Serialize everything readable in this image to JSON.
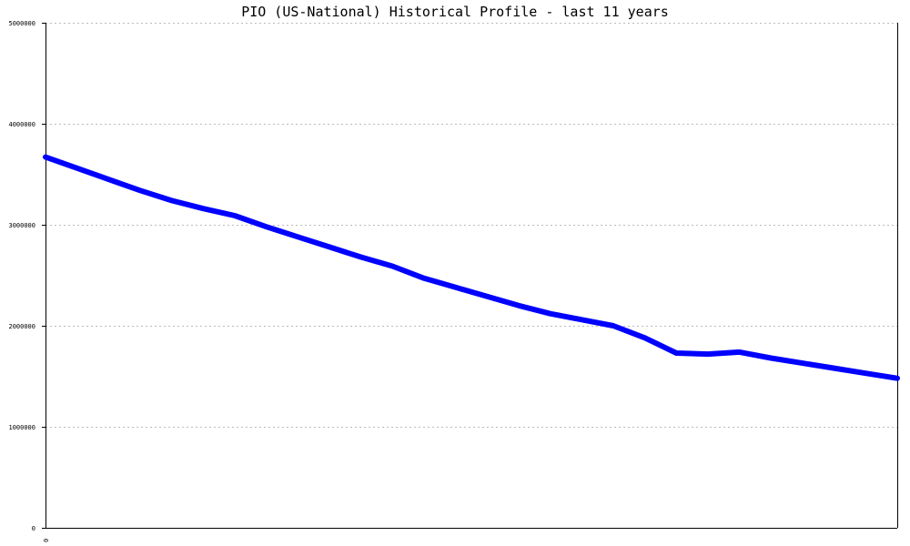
{
  "chart_data": {
    "type": "line",
    "title": "PIO (US-National) Historical Profile - last 11 years",
    "xlabel": "",
    "ylabel": "",
    "ylim": [
      0,
      5000000
    ],
    "yticks": [
      0,
      1000000,
      2000000,
      3000000,
      4000000,
      5000000
    ],
    "ytick_labels": [
      "0",
      "1000000",
      "2000000",
      "3000000",
      "4000000",
      "5000000"
    ],
    "xtick_labels": [
      "0"
    ],
    "grid": true,
    "colors": {
      "line": "#0000ff",
      "grid": "#bbbbbb",
      "axis": "#000000"
    },
    "series": [
      {
        "values": [
          3670000,
          3560000,
          3450000,
          3340000,
          3240000,
          3160000,
          3090000,
          2980000,
          2880000,
          2780000,
          2680000,
          2590000,
          2470000,
          2380000,
          2290000,
          2200000,
          2120000,
          2060000,
          2000000,
          1880000,
          1730000,
          1720000,
          1740000,
          1680000,
          1630000,
          1580000,
          1530000,
          1480000
        ]
      }
    ]
  }
}
